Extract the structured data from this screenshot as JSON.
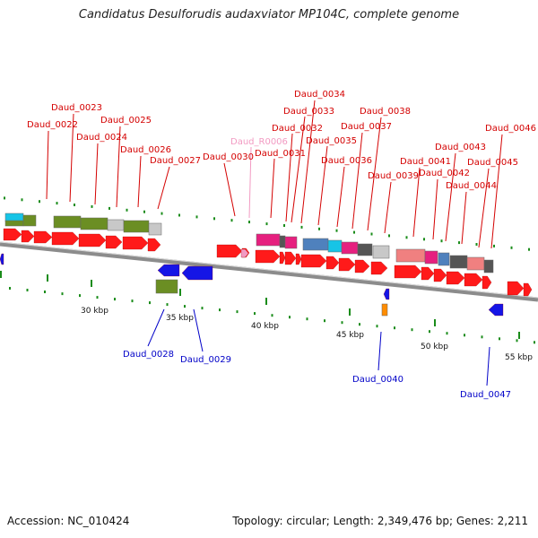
{
  "title": "Candidatus Desulforudis audaxviator MP104C, complete genome",
  "footer": {
    "accession": "Accession: NC_010424",
    "topology": "Topology: circular; Length: 2,349,476 bp; Genes: 2,211"
  },
  "colors": {
    "label_forward": "#d40000",
    "label_reverse": "#0000c8",
    "label_rna": "#f29ac2",
    "gene_arrow_forward": "#ff1a1a",
    "gene_arrow_reverse": "#1515e6",
    "backbone": "#8c8c8c",
    "tick": "#1a8c1a",
    "domain_olive": "#6b8e23",
    "domain_gray": "#c8c8c8",
    "domain_magenta": "#e6207f",
    "domain_steelblue": "#4f81bd",
    "domain_cyan": "#17c4e6",
    "domain_salmon": "#f08080",
    "domain_darkgray": "#555555",
    "domain_orange": "#ff8c00"
  },
  "scale_labels": [
    "30 kbp",
    "35 kbp",
    "40 kbp",
    "45 kbp",
    "50 kbp",
    "55 kbp"
  ],
  "genes_forward": [
    "Daud_0022",
    "Daud_0023",
    "Daud_0024",
    "Daud_0025",
    "Daud_0026",
    "Daud_0027",
    "Daud_0030",
    "Daud_0031",
    "Daud_0032",
    "Daud_0033",
    "Daud_0034",
    "Daud_0035",
    "Daud_0036",
    "Daud_0037",
    "Daud_0038",
    "Daud_0039",
    "Daud_0041",
    "Daud_0042",
    "Daud_0043",
    "Daud_0044",
    "Daud_0045",
    "Daud_0046"
  ],
  "genes_rna": [
    "Daud_R0006"
  ],
  "genes_reverse": [
    "Daud_0028",
    "Daud_0029",
    "Daud_0040",
    "Daud_0047"
  ]
}
